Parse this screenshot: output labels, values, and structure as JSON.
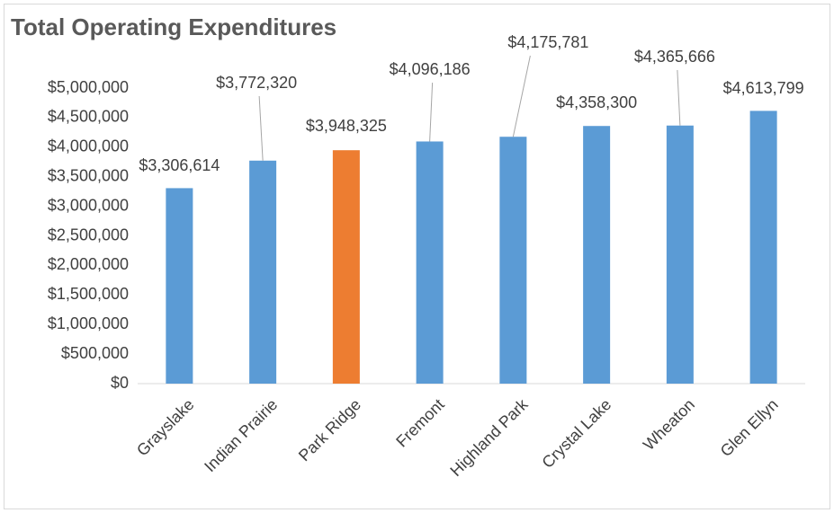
{
  "chart_data": {
    "type": "bar",
    "title": "Total Operating Expenditures",
    "categories": [
      "Grayslake",
      "Indian Prairie",
      "Park Ridge",
      "Fremont",
      "Highland Park",
      "Crystal Lake",
      "Wheaton",
      "Glen Ellyn"
    ],
    "values": [
      3306614,
      3772320,
      3948325,
      4096186,
      4175781,
      4358300,
      4365666,
      4613799
    ],
    "value_labels": [
      "$3,306,614",
      "$3,772,320",
      "$3,948,325",
      "$4,096,186",
      "$4,175,781",
      "$4,358,300",
      "$4,365,666",
      "$4,613,799"
    ],
    "colors": [
      "#5b9bd5",
      "#5b9bd5",
      "#ed7d31",
      "#5b9bd5",
      "#5b9bd5",
      "#5b9bd5",
      "#5b9bd5",
      "#5b9bd5"
    ],
    "ylim": [
      0,
      5000000
    ],
    "yticks": [
      {
        "value": 0,
        "label": "$0"
      },
      {
        "value": 500000,
        "label": "$500,000"
      },
      {
        "value": 1000000,
        "label": "$1,000,000"
      },
      {
        "value": 1500000,
        "label": "$1,500,000"
      },
      {
        "value": 2000000,
        "label": "$2,000,000"
      },
      {
        "value": 2500000,
        "label": "$2,500,000"
      },
      {
        "value": 3000000,
        "label": "$3,000,000"
      },
      {
        "value": 3500000,
        "label": "$3,500,000"
      },
      {
        "value": 4000000,
        "label": "$4,000,000"
      },
      {
        "value": 4500000,
        "label": "$4,500,000"
      },
      {
        "value": 5000000,
        "label": "$5,000,000"
      }
    ],
    "grid": false
  }
}
